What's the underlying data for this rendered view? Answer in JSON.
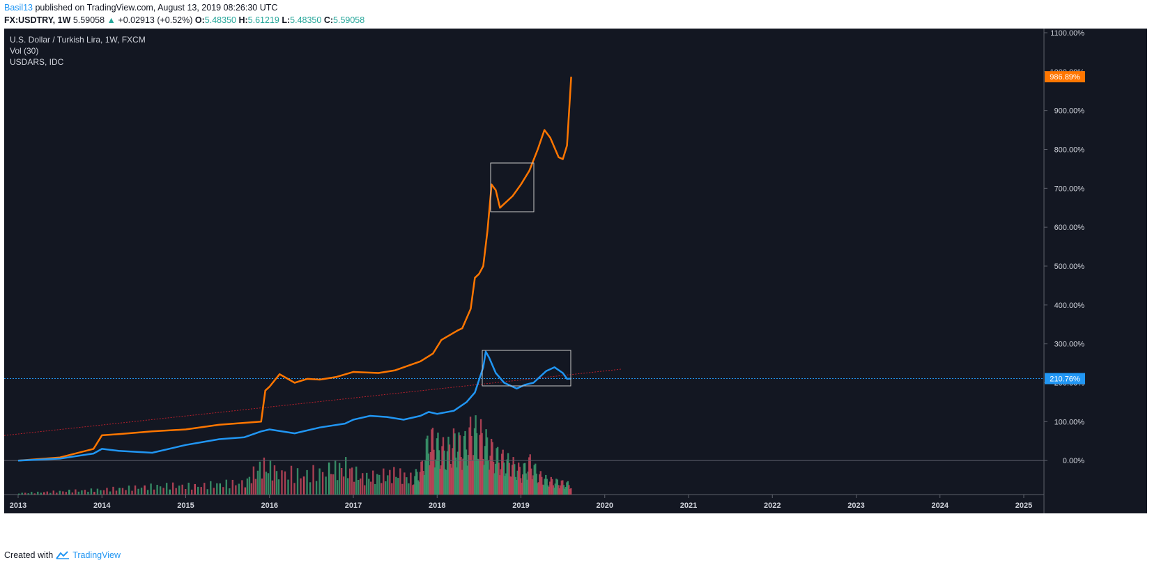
{
  "header": {
    "user": "Basil13",
    "published_text": "published on TradingView.com, August 13, 2019 08:26:30 UTC",
    "symbol": "FX:USDTRY, 1W",
    "last": "5.59058",
    "arrow": "▲",
    "change": "+0.02913 (+0.52%)",
    "o_label": "O:",
    "o": "5.48350",
    "h_label": "H:",
    "h": "5.61219",
    "l_label": "L:",
    "l": "5.48350",
    "c_label": "C:",
    "c": "5.59058"
  },
  "legend": {
    "line1": "U.S. Dollar / Turkish Lira, 1W, FXCM",
    "line2": "Vol (30)",
    "line3": "USDARS, IDC"
  },
  "badges": {
    "usdars": "986.89%",
    "usdtry": "210.76%"
  },
  "footer": {
    "created_with": "Created with",
    "brand": "TradingView"
  },
  "colors": {
    "background": "#131722",
    "usdars_line": "#ff7600",
    "usdtry_line": "#2196f3",
    "volume_up": "#3c9b6e",
    "volume_down": "#c2465a",
    "trend_line": "#b7202c"
  },
  "chart_data": {
    "type": "line",
    "x_ticks": [
      "2013",
      "2014",
      "2015",
      "2016",
      "2017",
      "2018",
      "2019",
      "2020",
      "2021",
      "2022",
      "2023",
      "2024",
      "2025"
    ],
    "y_ticks": [
      "1100.00%",
      "1000.00%",
      "900.00%",
      "800.00%",
      "700.00%",
      "600.00%",
      "500.00%",
      "400.00%",
      "300.00%",
      "200.00%",
      "100.00%",
      "0.00%"
    ],
    "ylim": [
      -100,
      1100
    ],
    "log_scale": false,
    "grid": false,
    "series": [
      {
        "name": "USDARS, IDC",
        "color": "#ff7600",
        "x": [
          2013.0,
          2013.5,
          2013.9,
          2014.0,
          2014.2,
          2014.6,
          2015.0,
          2015.4,
          2015.9,
          2015.95,
          2016.0,
          2016.12,
          2016.3,
          2016.45,
          2016.6,
          2016.8,
          2017.0,
          2017.3,
          2017.5,
          2017.8,
          2017.95,
          2018.05,
          2018.25,
          2018.3,
          2018.4,
          2018.45,
          2018.5,
          2018.55,
          2018.6,
          2018.65,
          2018.7,
          2018.75,
          2018.8,
          2018.9,
          2019.0,
          2019.1,
          2019.2,
          2019.28,
          2019.35,
          2019.45,
          2019.5,
          2019.55,
          2019.6
        ],
        "y": [
          0,
          8,
          30,
          65,
          68,
          75,
          80,
          92,
          100,
          180,
          190,
          222,
          200,
          210,
          208,
          215,
          228,
          225,
          232,
          255,
          275,
          310,
          335,
          340,
          390,
          470,
          480,
          500,
          590,
          710,
          695,
          650,
          660,
          680,
          710,
          745,
          800,
          850,
          830,
          780,
          775,
          810,
          986.89
        ]
      },
      {
        "name": "USD/TRY",
        "color": "#2196f3",
        "x": [
          2013.0,
          2013.5,
          2013.9,
          2014.0,
          2014.2,
          2014.6,
          2015.0,
          2015.4,
          2015.7,
          2015.9,
          2016.0,
          2016.3,
          2016.6,
          2016.9,
          2017.0,
          2017.2,
          2017.4,
          2017.6,
          2017.8,
          2017.9,
          2018.0,
          2018.2,
          2018.35,
          2018.45,
          2018.55,
          2018.58,
          2018.62,
          2018.7,
          2018.8,
          2018.95,
          2019.05,
          2019.15,
          2019.3,
          2019.4,
          2019.5,
          2019.55,
          2019.6
        ],
        "y": [
          0,
          5,
          18,
          30,
          25,
          20,
          40,
          55,
          60,
          75,
          80,
          70,
          85,
          95,
          105,
          115,
          112,
          105,
          115,
          125,
          120,
          128,
          150,
          175,
          240,
          280,
          265,
          225,
          200,
          185,
          195,
          200,
          230,
          240,
          225,
          210,
          210.76
        ]
      }
    ],
    "volume": {
      "name": "Vol (30)",
      "x": [
        2013.0,
        2013.3,
        2013.6,
        2013.9,
        2014.2,
        2014.5,
        2014.8,
        2015.1,
        2015.4,
        2015.7,
        2015.9,
        2016.1,
        2016.4,
        2016.7,
        2016.9,
        2017.1,
        2017.3,
        2017.5,
        2017.7,
        2017.8,
        2017.9,
        2018.0,
        2018.1,
        2018.2,
        2018.3,
        2018.4,
        2018.5,
        2018.6,
        2018.7,
        2018.8,
        2018.9,
        2019.0,
        2019.1,
        2019.2,
        2019.3,
        2019.4,
        2019.5,
        2019.6
      ],
      "values": [
        5,
        8,
        12,
        15,
        20,
        25,
        30,
        28,
        35,
        40,
        95,
        75,
        65,
        80,
        90,
        55,
        60,
        70,
        50,
        80,
        175,
        150,
        130,
        165,
        145,
        195,
        185,
        150,
        120,
        105,
        90,
        70,
        100,
        60,
        45,
        40,
        35,
        30
      ]
    },
    "trend_line": {
      "from": [
        2013.0,
        68
      ],
      "to": [
        2020.2,
        235
      ]
    }
  }
}
